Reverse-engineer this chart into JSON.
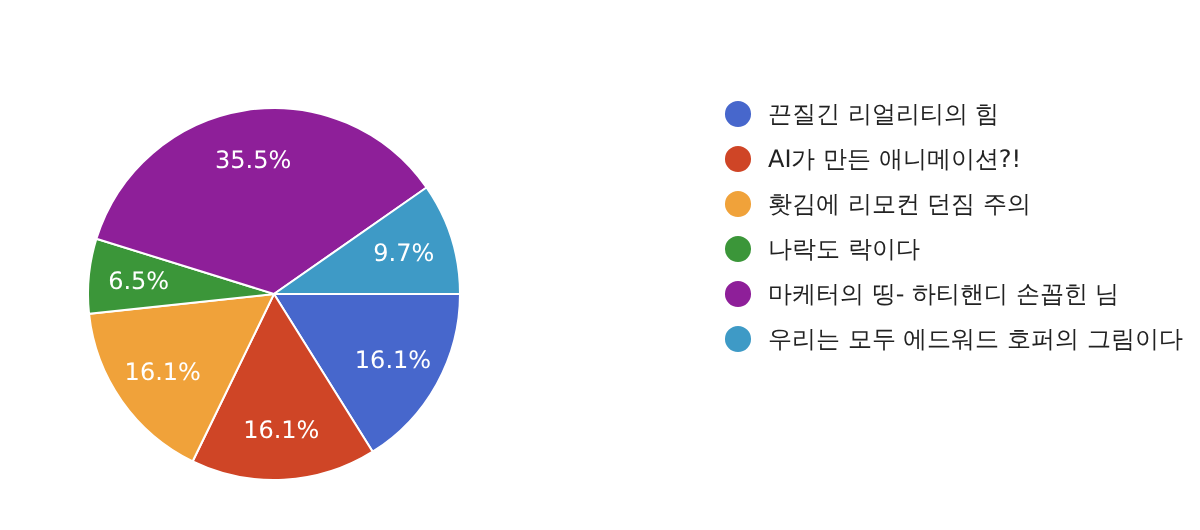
{
  "chart_data": {
    "type": "pie",
    "categories": [
      "끈질긴 리얼리티의 힘",
      "AI가 만든 애니메이션?!",
      "홧김에 리모컨 던짐 주의",
      "나락도 락이다",
      "마케터의 띵- 하티핸디 손꼽힌 님",
      "우리는 모두 에드워드 호퍼의 그림이다"
    ],
    "values": [
      16.1,
      16.1,
      16.1,
      6.5,
      35.5,
      9.7
    ],
    "colors": [
      "#4767cc",
      "#cf4526",
      "#f0a23a",
      "#3b9639",
      "#8e1f99",
      "#3e9ac6"
    ],
    "value_labels": [
      "16.1%",
      "16.1%",
      "16.1%",
      "6.5%",
      "35.5%",
      "9.7%"
    ],
    "legend": "right"
  }
}
